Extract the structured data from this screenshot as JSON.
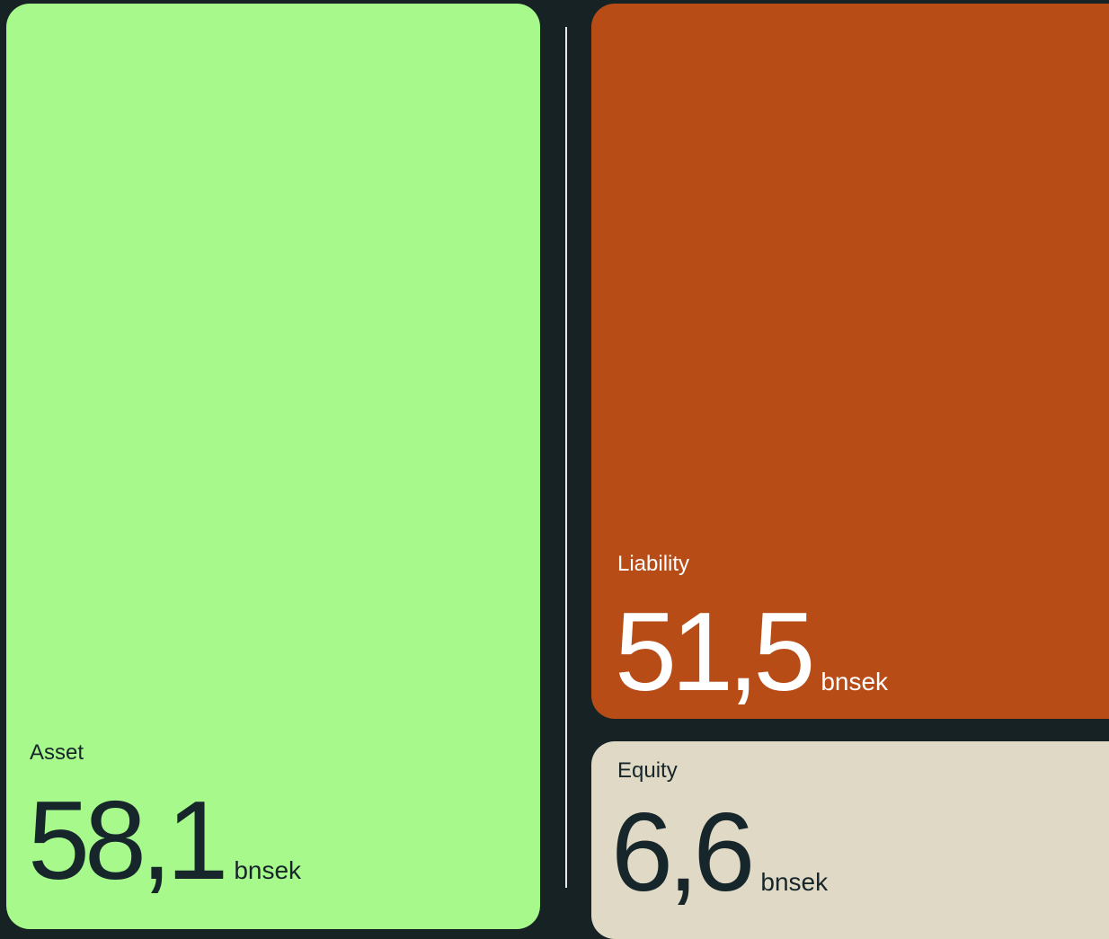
{
  "cards": [
    {
      "label": "Asset",
      "value": "58,1",
      "unit": "bnsek"
    },
    {
      "label": "Liability",
      "value": "51,5",
      "unit": "bnsek"
    },
    {
      "label": "Equity",
      "value": "6,6",
      "unit": "bnsek"
    }
  ]
}
